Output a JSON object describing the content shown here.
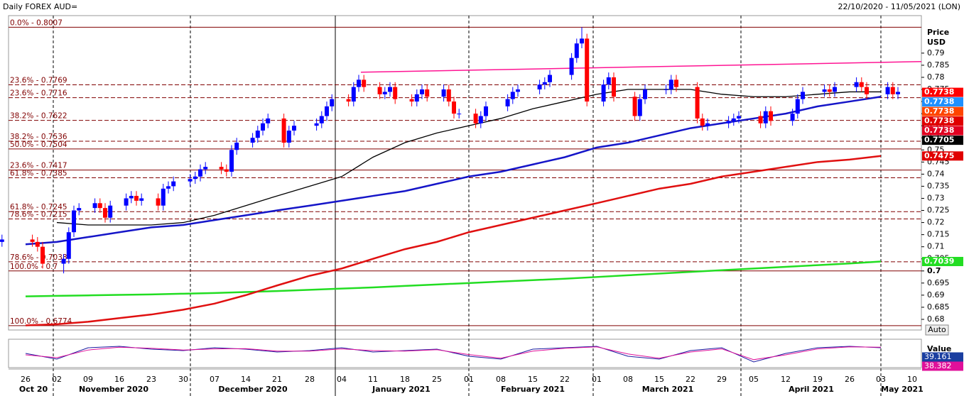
{
  "header": {
    "title": "Daily FOREX AUD=",
    "range": "22/10/2020 - 11/05/2021 (LON)"
  },
  "button": "Auto",
  "chart_data": [
    {
      "type": "candlestick",
      "ylabel": [
        "Price",
        "USD"
      ],
      "ylim": [
        0.6756,
        0.8055
      ],
      "yticks": [
        0.68,
        0.685,
        0.69,
        0.695,
        0.7,
        0.705,
        0.71,
        0.715,
        0.72,
        0.725,
        0.73,
        0.735,
        0.74,
        0.745,
        0.75,
        0.755,
        0.76,
        0.765,
        0.77,
        0.775,
        0.78,
        0.785,
        0.79
      ],
      "categories": [
        "26",
        "02",
        "09",
        "16",
        "23",
        "30",
        "07",
        "14",
        "21",
        "28",
        "04",
        "11",
        "18",
        "25",
        "01",
        "08",
        "15",
        "22",
        "01",
        "08",
        "15",
        "22",
        "29",
        "05",
        "12",
        "19",
        "26",
        "03",
        "10"
      ],
      "months": [
        "Oct 20",
        "November 2020",
        "December 2020",
        "January 2021",
        "February 2021",
        "March 2021",
        "April 2021",
        "May 2021"
      ],
      "up_color": "#0000ff",
      "down_color": "#ff0000",
      "ohlc": [
        [
          0.711,
          0.714,
          0.709,
          0.712
        ],
        [
          0.712,
          0.715,
          0.71,
          0.713
        ],
        [
          0.713,
          0.715,
          0.71,
          0.712
        ],
        [
          0.712,
          0.714,
          0.708,
          0.71
        ],
        [
          0.71,
          0.712,
          0.701,
          0.703
        ],
        [
          0.703,
          0.707,
          0.699,
          0.705
        ],
        [
          0.705,
          0.718,
          0.703,
          0.716
        ],
        [
          0.716,
          0.727,
          0.714,
          0.725
        ],
        [
          0.725,
          0.728,
          0.723,
          0.726
        ],
        [
          0.726,
          0.73,
          0.724,
          0.728
        ],
        [
          0.728,
          0.73,
          0.724,
          0.726
        ],
        [
          0.726,
          0.728,
          0.72,
          0.722
        ],
        [
          0.722,
          0.729,
          0.72,
          0.727
        ],
        [
          0.727,
          0.732,
          0.725,
          0.73
        ],
        [
          0.73,
          0.733,
          0.728,
          0.731
        ],
        [
          0.731,
          0.733,
          0.727,
          0.729
        ],
        [
          0.729,
          0.732,
          0.727,
          0.73
        ],
        [
          0.73,
          0.732,
          0.725,
          0.727
        ],
        [
          0.727,
          0.736,
          0.725,
          0.734
        ],
        [
          0.734,
          0.737,
          0.732,
          0.735
        ],
        [
          0.735,
          0.739,
          0.733,
          0.737
        ],
        [
          0.737,
          0.74,
          0.735,
          0.738
        ],
        [
          0.738,
          0.741,
          0.736,
          0.739
        ],
        [
          0.739,
          0.744,
          0.737,
          0.742
        ],
        [
          0.742,
          0.745,
          0.74,
          0.743
        ],
        [
          0.743,
          0.745,
          0.74,
          0.742
        ],
        [
          0.742,
          0.744,
          0.739,
          0.741
        ],
        [
          0.741,
          0.752,
          0.739,
          0.75
        ],
        [
          0.75,
          0.755,
          0.748,
          0.753
        ],
        [
          0.753,
          0.757,
          0.751,
          0.755
        ],
        [
          0.755,
          0.76,
          0.753,
          0.758
        ],
        [
          0.758,
          0.763,
          0.756,
          0.761
        ],
        [
          0.761,
          0.765,
          0.759,
          0.763
        ],
        [
          0.763,
          0.765,
          0.751,
          0.753
        ],
        [
          0.753,
          0.76,
          0.751,
          0.758
        ],
        [
          0.758,
          0.762,
          0.756,
          0.76
        ],
        [
          0.76,
          0.763,
          0.758,
          0.761
        ],
        [
          0.761,
          0.766,
          0.759,
          0.764
        ],
        [
          0.764,
          0.77,
          0.762,
          0.768
        ],
        [
          0.768,
          0.773,
          0.766,
          0.771
        ],
        [
          0.771,
          0.773,
          0.768,
          0.77
        ],
        [
          0.77,
          0.778,
          0.768,
          0.776
        ],
        [
          0.776,
          0.781,
          0.774,
          0.779
        ],
        [
          0.779,
          0.781,
          0.774,
          0.776
        ],
        [
          0.776,
          0.778,
          0.771,
          0.773
        ],
        [
          0.773,
          0.776,
          0.771,
          0.774
        ],
        [
          0.774,
          0.778,
          0.772,
          0.776
        ],
        [
          0.776,
          0.778,
          0.769,
          0.771
        ],
        [
          0.771,
          0.773,
          0.768,
          0.77
        ],
        [
          0.77,
          0.775,
          0.768,
          0.773
        ],
        [
          0.773,
          0.777,
          0.771,
          0.775
        ],
        [
          0.775,
          0.777,
          0.77,
          0.772
        ],
        [
          0.772,
          0.777,
          0.77,
          0.775
        ],
        [
          0.775,
          0.777,
          0.768,
          0.77
        ],
        [
          0.77,
          0.772,
          0.763,
          0.765
        ],
        [
          0.765,
          0.767,
          0.763,
          0.765
        ],
        [
          0.765,
          0.767,
          0.759,
          0.761
        ],
        [
          0.761,
          0.766,
          0.759,
          0.764
        ],
        [
          0.764,
          0.77,
          0.762,
          0.768
        ],
        [
          0.768,
          0.773,
          0.766,
          0.771
        ],
        [
          0.771,
          0.776,
          0.769,
          0.774
        ],
        [
          0.774,
          0.777,
          0.772,
          0.775
        ],
        [
          0.775,
          0.779,
          0.773,
          0.777
        ],
        [
          0.777,
          0.78,
          0.775,
          0.778
        ],
        [
          0.778,
          0.783,
          0.776,
          0.781
        ],
        [
          0.781,
          0.79,
          0.779,
          0.788
        ],
        [
          0.788,
          0.796,
          0.786,
          0.794
        ],
        [
          0.794,
          0.8007,
          0.792,
          0.796
        ],
        [
          0.796,
          0.798,
          0.768,
          0.77
        ],
        [
          0.77,
          0.779,
          0.768,
          0.777
        ],
        [
          0.777,
          0.782,
          0.775,
          0.78
        ],
        [
          0.78,
          0.782,
          0.77,
          0.772
        ],
        [
          0.772,
          0.774,
          0.762,
          0.764
        ],
        [
          0.764,
          0.773,
          0.762,
          0.771
        ],
        [
          0.771,
          0.777,
          0.769,
          0.775
        ],
        [
          0.775,
          0.777,
          0.773,
          0.775
        ],
        [
          0.775,
          0.781,
          0.773,
          0.779
        ],
        [
          0.779,
          0.781,
          0.774,
          0.776
        ],
        [
          0.776,
          0.778,
          0.761,
          0.763
        ],
        [
          0.763,
          0.765,
          0.758,
          0.76
        ],
        [
          0.76,
          0.763,
          0.758,
          0.761
        ],
        [
          0.761,
          0.764,
          0.759,
          0.762
        ],
        [
          0.762,
          0.765,
          0.76,
          0.763
        ],
        [
          0.763,
          0.766,
          0.761,
          0.764
        ],
        [
          0.764,
          0.766,
          0.759,
          0.761
        ],
        [
          0.761,
          0.768,
          0.759,
          0.766
        ],
        [
          0.766,
          0.768,
          0.76,
          0.762
        ],
        [
          0.762,
          0.767,
          0.76,
          0.765
        ],
        [
          0.765,
          0.773,
          0.763,
          0.771
        ],
        [
          0.771,
          0.776,
          0.769,
          0.774
        ],
        [
          0.774,
          0.777,
          0.772,
          0.775
        ],
        [
          0.775,
          0.777,
          0.772,
          0.774
        ],
        [
          0.774,
          0.778,
          0.772,
          0.776
        ],
        [
          0.776,
          0.78,
          0.774,
          0.778
        ],
        [
          0.778,
          0.78,
          0.774,
          0.776
        ],
        [
          0.776,
          0.778,
          0.771,
          0.773
        ],
        [
          0.773,
          0.778,
          0.771,
          0.776
        ],
        [
          0.776,
          0.778,
          0.771,
          0.773
        ],
        [
          0.773,
          0.776,
          0.771,
          0.774
        ]
      ],
      "series": [
        {
          "color": "#1515c8",
          "values": [
            0.711,
            0.712,
            0.714,
            0.716,
            0.718,
            0.719,
            0.721,
            0.723,
            0.725,
            0.727,
            0.729,
            0.731,
            0.733,
            0.736,
            0.739,
            0.741,
            0.744,
            0.747,
            0.751,
            0.753,
            0.756,
            0.759,
            0.761,
            0.763,
            0.765,
            0.768,
            0.77,
            0.772,
            null
          ]
        },
        {
          "color": "#000000",
          "values": [
            null,
            0.72,
            0.719,
            0.719,
            0.719,
            0.72,
            0.723,
            0.727,
            0.731,
            0.735,
            0.739,
            0.747,
            0.753,
            0.757,
            0.76,
            0.763,
            0.767,
            0.77,
            0.773,
            0.775,
            0.775,
            0.775,
            0.773,
            0.772,
            0.772,
            0.773,
            0.774,
            0.774,
            null
          ]
        },
        {
          "color": "#e01010",
          "values": [
            0.6775,
            0.678,
            0.679,
            0.6805,
            0.682,
            0.684,
            0.6865,
            0.69,
            0.694,
            0.698,
            0.701,
            0.705,
            0.709,
            0.712,
            0.716,
            0.719,
            0.722,
            0.725,
            0.728,
            0.731,
            0.734,
            0.736,
            0.739,
            0.741,
            0.743,
            0.745,
            0.746,
            0.7475,
            null
          ]
        },
        {
          "color": "#22dd22",
          "values": [
            0.6895,
            0.6897,
            0.6899,
            0.6901,
            0.6903,
            0.6906,
            0.6909,
            0.6913,
            0.6917,
            0.6922,
            0.6927,
            0.6932,
            0.6938,
            0.6944,
            0.695,
            0.6956,
            0.6962,
            0.6968,
            0.6975,
            0.6982,
            0.6989,
            0.6996,
            0.7003,
            0.701,
            0.7017,
            0.7024,
            0.7031,
            0.7039,
            null
          ]
        }
      ],
      "trendline": {
        "color": "#ff1493",
        "values": [
          0.7821,
          0.7865
        ]
      },
      "fib_levels": [
        {
          "label": "0.0% - 0.8007",
          "value": 0.8007,
          "dashed": false
        },
        {
          "label": "23.6% - 0.7769",
          "value": 0.7769,
          "dashed": true
        },
        {
          "label": "23.6% - 0.7716",
          "value": 0.7716,
          "dashed": true
        },
        {
          "label": "38.2% - 0.7622",
          "value": 0.7622,
          "dashed": true
        },
        {
          "label": "38.2% - 0.7536",
          "value": 0.7536,
          "dashed": true
        },
        {
          "label": "50.0% - 0.7504",
          "value": 0.7504,
          "dashed": false
        },
        {
          "label": "23.6% - 0.7417",
          "value": 0.7417,
          "dashed": false
        },
        {
          "label": "61.8% - 0.7385",
          "value": 0.7385,
          "dashed": true
        },
        {
          "label": "61.8% - 0.7245",
          "value": 0.7245,
          "dashed": true
        },
        {
          "label": "78.6% - 0.7215",
          "value": 0.7215,
          "dashed": true
        },
        {
          "label": "78.6% - 0.7038",
          "value": 0.7038,
          "dashed": true
        },
        {
          "label": "100.0% - 0.7",
          "value": 0.7,
          "dashed": false
        },
        {
          "label": "100.0% - 0.6774",
          "value": 0.6774,
          "dashed": false
        }
      ],
      "price_tags": [
        {
          "value": 0.7738,
          "color": "#ff0000"
        },
        {
          "value": 0.7738,
          "color": "#1e90ff"
        },
        {
          "value": 0.7738,
          "color": "#ff4500"
        },
        {
          "value": 0.7738,
          "color": "#e00000"
        },
        {
          "value": 0.7738,
          "color": "#e00020"
        },
        {
          "value": 0.7705,
          "color": "#000000"
        },
        {
          "value": 0.7475,
          "color": "#e00000"
        },
        {
          "value": 0.7039,
          "color": "#22dd22"
        }
      ]
    },
    {
      "type": "oscillator",
      "ylabel": "Value",
      "ylim": [
        0,
        100
      ],
      "series": [
        {
          "color": "#1a1aa0",
          "values": [
            50,
            30,
            70,
            75,
            65,
            60,
            70,
            65,
            55,
            60,
            70,
            55,
            60,
            65,
            40,
            30,
            65,
            70,
            75,
            40,
            30,
            60,
            70,
            20,
            50,
            70,
            75,
            70,
            null
          ]
        },
        {
          "color": "#e0109a",
          "values": [
            45,
            35,
            62,
            72,
            68,
            62,
            66,
            67,
            58,
            58,
            66,
            60,
            58,
            63,
            46,
            33,
            58,
            68,
            73,
            48,
            33,
            55,
            66,
            28,
            45,
            66,
            73,
            72,
            null
          ]
        }
      ],
      "tags": [
        {
          "value": 39.161,
          "color": "#1a3ea0"
        },
        {
          "value": 38.382,
          "color": "#e0109a"
        }
      ]
    }
  ]
}
